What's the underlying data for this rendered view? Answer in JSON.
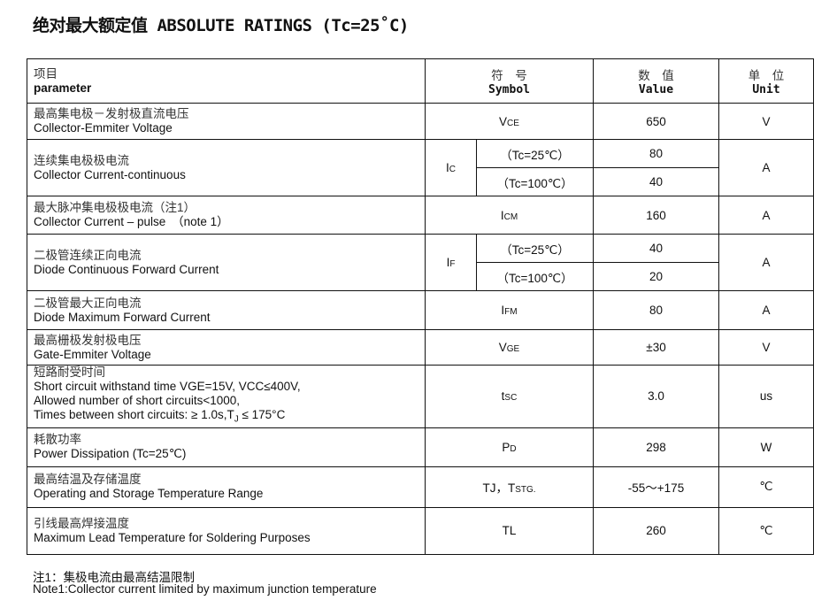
{
  "title": "绝对最大额定值 ABSOLUTE RATINGS (Tc=25˚C)",
  "header": {
    "param_cn": "项目",
    "param_en": "parameter",
    "symbol_cn": "符　号",
    "symbol_en": "Symbol",
    "value_cn": "数　值",
    "value_en": "Value",
    "unit_cn": "单　位",
    "unit_en": "Unit"
  },
  "rows": [
    {
      "cn": "最高集电极－发射极直流电压",
      "en": "Collector-Emmiter Voltage",
      "sym": "V",
      "sub": "CE",
      "value": "650",
      "unit": "V"
    },
    {
      "cn": "连续集电极极电流",
      "en": "Collector Current-continuous",
      "sym": "I",
      "sub": "C",
      "cond1": "（Tc=25℃）",
      "value1": "80",
      "cond2": "（Tc=100℃）",
      "value2": "40",
      "unit": "A"
    },
    {
      "cn": "最大脉冲集电极极电流（注1）",
      "en": "Collector Current – pulse　（note 1）",
      "sym": "I",
      "sub": "CM",
      "value": "160",
      "unit": "A"
    },
    {
      "cn": "二极管连续正向电流",
      "en": "Diode Continuous Forward Current",
      "sym": "I",
      "sub": "F",
      "cond1": "（Tc=25℃）",
      "value1": "40",
      "cond2": "（Tc=100℃）",
      "value2": "20",
      "unit": "A"
    },
    {
      "cn": "二极管最大正向电流",
      "en": "Diode Maximum Forward Current",
      "sym": "I",
      "sub": "FM",
      "value": "80",
      "unit": "A"
    },
    {
      "cn": "最高栅极发射极电压",
      "en": "Gate-Emmiter Voltage",
      "sym": "V",
      "sub": "GE",
      "value": "±30",
      "unit": "V"
    },
    {
      "cn": "短路耐受时间",
      "en": "Short circuit withstand time VGE=15V, VCC≤400V,",
      "en2": "Allowed number of short circuits<1000,",
      "en3": "Times between short circuits: ≥ 1.0s,T",
      "en3sub": "J",
      "en3b": " ≤ 175°C",
      "sym": "t",
      "sub": "SC",
      "value": "3.0",
      "unit": "us"
    },
    {
      "cn": "耗散功率",
      "en": "Power Dissipation (Tc=25℃)",
      "sym": "P",
      "sub": "D",
      "value": "298",
      "unit": "W"
    },
    {
      "cn": "最高结温及存储温度",
      "en": "Operating and Storage Temperature Range",
      "sym": "TJ，T",
      "sub": "STG.",
      "value": "-55～+175",
      "unit": "℃"
    },
    {
      "cn": "引线最高焊接温度",
      "en": "Maximum Lead Temperature for Soldering Purposes",
      "sym": "TL",
      "sub": "",
      "value": "260",
      "unit": "℃"
    }
  ],
  "notes": {
    "cn": "注1：集极电流由最高结温限制",
    "en": "Note1:Collector current limited by maximum junction temperature"
  }
}
